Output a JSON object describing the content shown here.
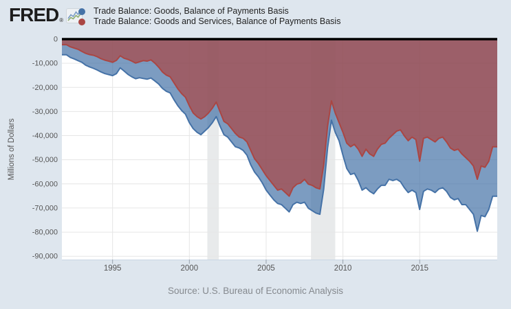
{
  "header": {
    "logo_text": "FRED",
    "logo_reg": "®",
    "logo_icon": "sparkline-icon"
  },
  "colors": {
    "page_background": "#dee6ee",
    "plot_background": "#ffffff",
    "gridline": "#e6e6e6",
    "recession_band": "#e8eaeb",
    "zero_line": "#000000",
    "axis_line": "#c9d6e4",
    "tick_stub": "#97a1ab",
    "tick_text": "#555555",
    "goods_blue": "#4572a7",
    "goods_services_red": "#aa4643"
  },
  "chart_data": {
    "type": "area",
    "title": "",
    "xlabel": "",
    "ylabel": "Millions of Dollars",
    "source": "Source: U.S. Bureau of Economic Analysis",
    "legend_position": "top",
    "grid": true,
    "x_unit": "year (quarterly observations, Balance of Payments basis, monthly rate)",
    "x_start": 1992.0,
    "x_step": 0.25,
    "x_range": [
      1991.7,
      2020.05
    ],
    "x_ticks": [
      1995,
      2000,
      2005,
      2010,
      2015
    ],
    "ylim": [
      -90000,
      0
    ],
    "y_ticks": [
      0,
      -10000,
      -20000,
      -30000,
      -40000,
      -50000,
      -60000,
      -70000,
      -80000,
      -90000
    ],
    "y_tick_labels": [
      "0",
      "-10,000",
      "-20,000",
      "-30,000",
      "-40,000",
      "-50,000",
      "-60,000",
      "-70,000",
      "-80,000",
      "-90,000"
    ],
    "recession_bands": [
      {
        "start": 2001.17,
        "end": 2001.92
      },
      {
        "start": 2007.92,
        "end": 2009.5
      }
    ],
    "series": [
      {
        "name": "Trade Balance: Goods, Balance of Payments Basis",
        "color": "#4572a7",
        "fill_opacity": 0.7,
        "values": [
          -6500,
          -7600,
          -8200,
          -8900,
          -9600,
          -10800,
          -11500,
          -12100,
          -12800,
          -13600,
          -14300,
          -14700,
          -15100,
          -14300,
          -11900,
          -13200,
          -14600,
          -15600,
          -16400,
          -16000,
          -16300,
          -16600,
          -16100,
          -17300,
          -18600,
          -20400,
          -21600,
          -22300,
          -25100,
          -27600,
          -29600,
          -31100,
          -34600,
          -37100,
          -38600,
          -39600,
          -38100,
          -36600,
          -34600,
          -32100,
          -36100,
          -39600,
          -40600,
          -42600,
          -44600,
          -45100,
          -46100,
          -48100,
          -52100,
          -55100,
          -57100,
          -59600,
          -62600,
          -64600,
          -66600,
          -68100,
          -68600,
          -70100,
          -71600,
          -68600,
          -67600,
          -68100,
          -67600,
          -70100,
          -71100,
          -72100,
          -72600,
          -62100,
          -45100,
          -33600,
          -38600,
          -42100,
          -48100,
          -53600,
          -56100,
          -55600,
          -58600,
          -62600,
          -61600,
          -63100,
          -64100,
          -62100,
          -60600,
          -60600,
          -58100,
          -58600,
          -58100,
          -59100,
          -61600,
          -63600,
          -62600,
          -63600,
          -70600,
          -63100,
          -62100,
          -62600,
          -63600,
          -62100,
          -61600,
          -63100,
          -65600,
          -66600,
          -66100,
          -68600,
          -68600,
          -70600,
          -72600,
          -79600,
          -73100,
          -73600,
          -70600,
          -65100
        ]
      },
      {
        "name": "Trade Balance: Goods and Services, Balance of Payments Basis",
        "color": "#aa4643",
        "fill_opacity": 0.7,
        "values": [
          -2300,
          -3200,
          -3700,
          -4200,
          -5100,
          -5900,
          -6400,
          -6700,
          -7300,
          -8100,
          -8700,
          -9100,
          -9600,
          -8800,
          -6900,
          -7900,
          -8400,
          -9100,
          -9900,
          -9400,
          -8900,
          -9100,
          -8600,
          -9900,
          -11600,
          -13600,
          -14900,
          -15600,
          -18100,
          -20600,
          -22600,
          -24100,
          -27600,
          -30600,
          -32100,
          -33100,
          -32100,
          -30600,
          -28600,
          -26100,
          -30100,
          -34100,
          -35100,
          -37100,
          -39100,
          -40600,
          -41100,
          -42600,
          -46100,
          -49600,
          -51600,
          -54100,
          -56600,
          -58600,
          -60600,
          -62600,
          -62100,
          -63600,
          -65100,
          -61600,
          -60100,
          -59600,
          -58100,
          -60100,
          -60600,
          -61600,
          -62100,
          -52100,
          -36100,
          -25600,
          -30600,
          -34600,
          -38600,
          -43100,
          -44600,
          -43600,
          -45600,
          -48600,
          -45600,
          -47600,
          -48600,
          -45600,
          -43600,
          -43100,
          -41100,
          -39600,
          -38100,
          -37600,
          -40100,
          -42100,
          -40600,
          -41600,
          -50600,
          -41100,
          -40600,
          -41600,
          -42600,
          -41100,
          -40600,
          -42600,
          -45100,
          -46100,
          -45600,
          -47600,
          -49100,
          -50600,
          -52600,
          -58100,
          -52600,
          -53100,
          -50600,
          -44600
        ]
      }
    ]
  }
}
